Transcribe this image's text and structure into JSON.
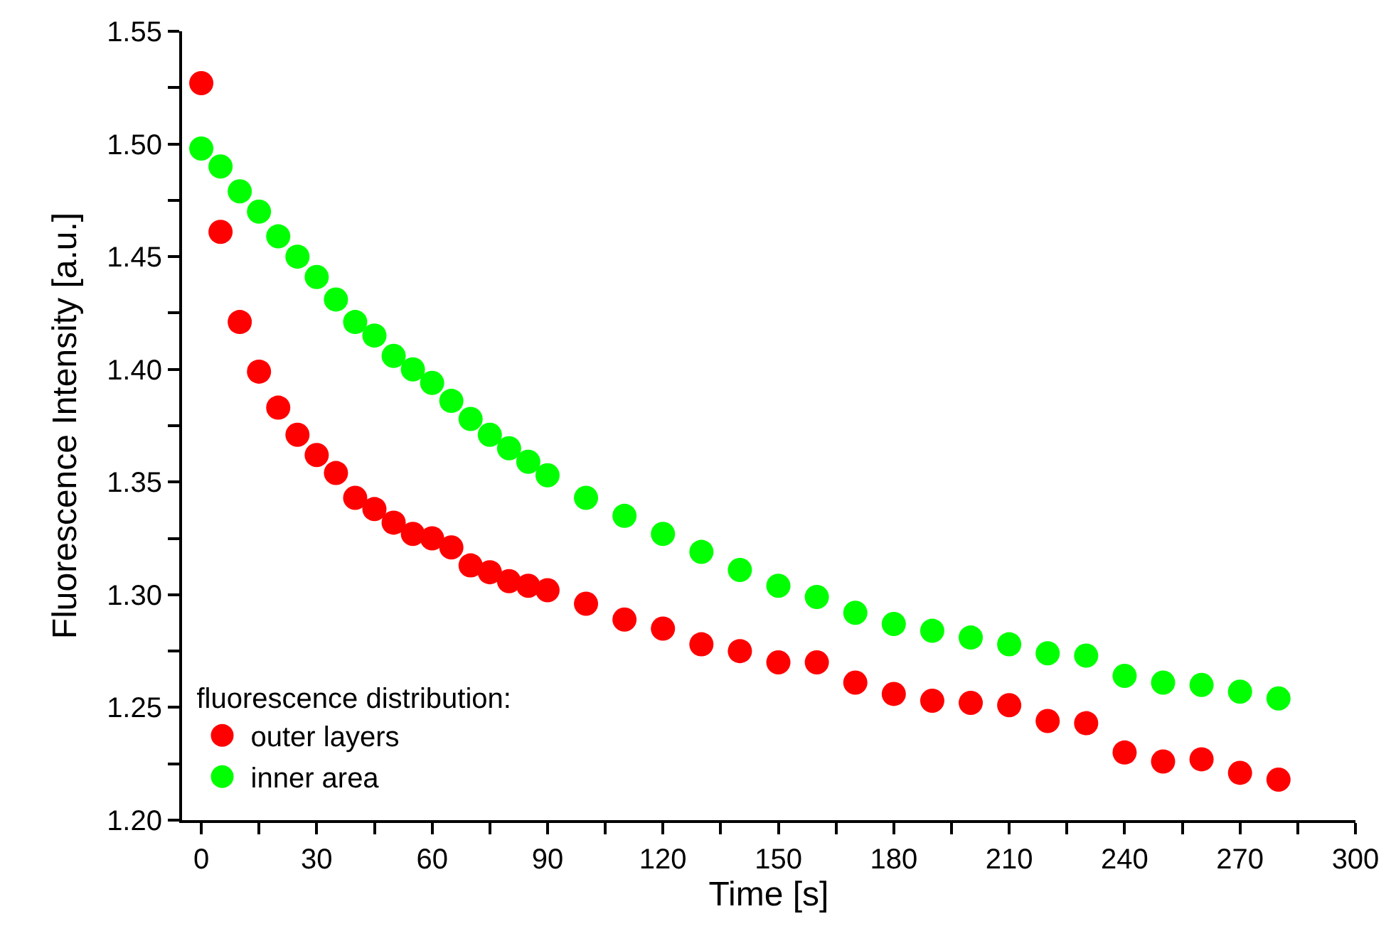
{
  "chart_data": {
    "type": "scatter",
    "xlabel": "Time [s]",
    "ylabel": "Fluorescence Intensity [a.u.]",
    "legend_title": "fluorescence distribution:",
    "legend": "bottom left",
    "marker": "circle",
    "grid": false,
    "x": [
      0,
      5,
      10,
      15,
      20,
      25,
      30,
      35,
      40,
      45,
      50,
      55,
      60,
      65,
      70,
      75,
      80,
      85,
      90,
      100,
      110,
      120,
      130,
      140,
      150,
      160,
      170,
      180,
      190,
      200,
      210,
      220,
      230,
      240,
      250,
      260,
      270,
      280
    ],
    "series": [
      {
        "name": "outer layers",
        "color": "#ff0000",
        "values": [
          1.527,
          1.461,
          1.421,
          1.399,
          1.383,
          1.371,
          1.362,
          1.354,
          1.343,
          1.338,
          1.332,
          1.327,
          1.325,
          1.321,
          1.313,
          1.31,
          1.306,
          1.304,
          1.302,
          1.296,
          1.289,
          1.285,
          1.278,
          1.275,
          1.27,
          1.27,
          1.261,
          1.256,
          1.253,
          1.252,
          1.251,
          1.244,
          1.243,
          1.23,
          1.226,
          1.227,
          1.221,
          1.218
        ]
      },
      {
        "name": "inner area",
        "color": "#00ff00",
        "values": [
          1.498,
          1.49,
          1.479,
          1.47,
          1.459,
          1.45,
          1.441,
          1.431,
          1.421,
          1.415,
          1.406,
          1.4,
          1.394,
          1.386,
          1.378,
          1.371,
          1.365,
          1.359,
          1.353,
          1.343,
          1.335,
          1.327,
          1.319,
          1.311,
          1.304,
          1.299,
          1.292,
          1.287,
          1.284,
          1.281,
          1.278,
          1.274,
          1.273,
          1.264,
          1.261,
          1.26,
          1.257,
          1.254
        ]
      }
    ],
    "xlim": [
      -5,
      300
    ],
    "ylim": [
      1.2,
      1.55
    ],
    "xticks": [
      0,
      {
        "value": 15,
        "label": null
      },
      30,
      {
        "value": 45,
        "label": null
      },
      60,
      {
        "value": 75,
        "label": null
      },
      90,
      {
        "value": 105,
        "label": null
      },
      120,
      {
        "value": 135,
        "label": null
      },
      150,
      {
        "value": 165,
        "label": null
      },
      180,
      {
        "value": 195,
        "label": null
      },
      210,
      {
        "value": 225,
        "label": null
      },
      240,
      {
        "value": 255,
        "label": null
      },
      270,
      {
        "value": 285,
        "label": null
      },
      300
    ],
    "yticks": [
      {
        "value": 1.2,
        "label": "1.20"
      },
      {
        "value": 1.225,
        "label": null
      },
      {
        "value": 1.25,
        "label": "1.25"
      },
      {
        "value": 1.275,
        "label": null
      },
      {
        "value": 1.3,
        "label": "1.30"
      },
      {
        "value": 1.325,
        "label": null
      },
      {
        "value": 1.35,
        "label": "1.35"
      },
      {
        "value": 1.375,
        "label": null
      },
      {
        "value": 1.4,
        "label": "1.40"
      },
      {
        "value": 1.425,
        "label": null
      },
      {
        "value": 1.45,
        "label": "1.45"
      },
      {
        "value": 1.475,
        "label": null
      },
      {
        "value": 1.5,
        "label": "1.50"
      },
      {
        "value": 1.525,
        "label": null
      },
      {
        "value": 1.55,
        "label": "1.55"
      }
    ]
  }
}
